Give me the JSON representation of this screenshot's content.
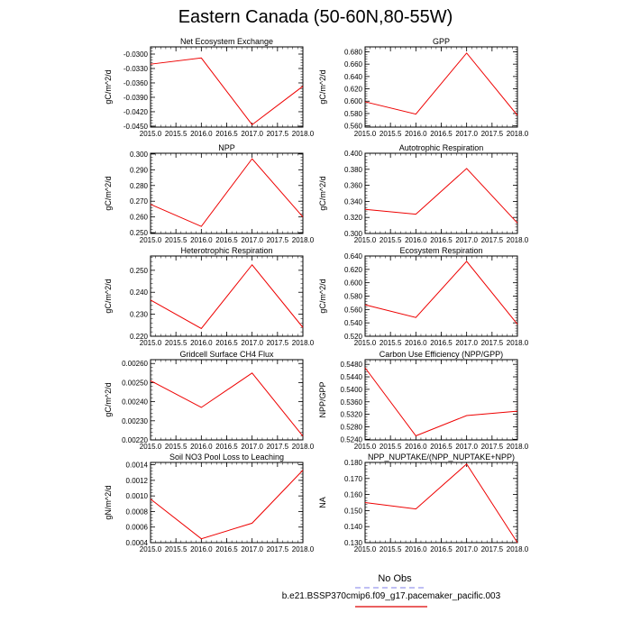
{
  "title": "Eastern Canada (50-60N,80-55W)",
  "chart_data": [
    {
      "type": "line",
      "title": "Net Ecosystem Exchange",
      "ylabel": "gC/m^2/d",
      "x": [
        2015,
        2016,
        2017,
        2018
      ],
      "values": [
        -0.0321,
        -0.0308,
        -0.0447,
        -0.0367
      ],
      "ylim": [
        -0.0452,
        -0.0285
      ],
      "yticks": [
        -0.045,
        -0.042,
        -0.039,
        -0.036,
        -0.033,
        -0.03
      ],
      "yfmt": 4,
      "xlim": [
        2015,
        2018
      ],
      "xticks": [
        2015,
        2015.5,
        2016,
        2016.5,
        2017,
        2017.5,
        2018
      ]
    },
    {
      "type": "line",
      "title": "GPP",
      "ylabel": "gC/m^2/d",
      "x": [
        2015,
        2016,
        2017,
        2018
      ],
      "values": [
        0.599,
        0.579,
        0.678,
        0.577
      ],
      "ylim": [
        0.558,
        0.688
      ],
      "yticks": [
        0.56,
        0.58,
        0.6,
        0.62,
        0.64,
        0.66,
        0.68
      ],
      "yfmt": 3,
      "xlim": [
        2015,
        2018
      ],
      "xticks": [
        2015,
        2015.5,
        2016,
        2016.5,
        2017,
        2017.5,
        2018
      ]
    },
    {
      "type": "line",
      "title": "NPP",
      "ylabel": "gC/m^2/d",
      "x": [
        2015,
        2016,
        2017,
        2018
      ],
      "values": [
        0.268,
        0.254,
        0.297,
        0.26
      ],
      "ylim": [
        0.2495,
        0.3005
      ],
      "yticks": [
        0.25,
        0.26,
        0.27,
        0.28,
        0.29,
        0.3
      ],
      "yfmt": 3,
      "xlim": [
        2015,
        2018
      ],
      "xticks": [
        2015,
        2015.5,
        2016,
        2016.5,
        2017,
        2017.5,
        2018
      ]
    },
    {
      "type": "line",
      "title": "Autotrophic Respiration",
      "ylabel": "gC/m^2/d",
      "x": [
        2015,
        2016,
        2017,
        2018
      ],
      "values": [
        0.33,
        0.324,
        0.381,
        0.313
      ],
      "ylim": [
        0.3,
        0.4
      ],
      "yticks": [
        0.3,
        0.32,
        0.34,
        0.36,
        0.38,
        0.4
      ],
      "yfmt": 3,
      "xlim": [
        2015,
        2018
      ],
      "xticks": [
        2015,
        2015.5,
        2016,
        2016.5,
        2017,
        2017.5,
        2018
      ]
    },
    {
      "type": "line",
      "title": "Heterotrophic Respiration",
      "ylabel": "gC/m^2/d",
      "x": [
        2015,
        2016,
        2017,
        2018
      ],
      "values": [
        0.2365,
        0.2235,
        0.2525,
        0.224
      ],
      "ylim": [
        0.22,
        0.2565
      ],
      "yticks": [
        0.22,
        0.23,
        0.24,
        0.25
      ],
      "yfmt": 3,
      "xlim": [
        2015,
        2018
      ],
      "xticks": [
        2015,
        2015.5,
        2016,
        2016.5,
        2017,
        2017.5,
        2018
      ]
    },
    {
      "type": "line",
      "title": "Ecosystem Respiration",
      "ylabel": "gC/m^2/d",
      "x": [
        2015,
        2016,
        2017,
        2018
      ],
      "values": [
        0.567,
        0.548,
        0.632,
        0.538
      ],
      "ylim": [
        0.52,
        0.64
      ],
      "yticks": [
        0.52,
        0.54,
        0.56,
        0.58,
        0.6,
        0.62,
        0.64
      ],
      "yfmt": 3,
      "xlim": [
        2015,
        2018
      ],
      "xticks": [
        2015,
        2015.5,
        2016,
        2016.5,
        2017,
        2017.5,
        2018
      ]
    },
    {
      "type": "line",
      "title": "Gridcell Surface CH4 Flux",
      "ylabel": "gC/m^2/d",
      "x": [
        2015,
        2016,
        2017,
        2018
      ],
      "values": [
        0.00251,
        0.00237,
        0.00255,
        0.00222
      ],
      "ylim": [
        0.0022,
        0.00262
      ],
      "yticks": [
        0.0022,
        0.0023,
        0.0024,
        0.0025,
        0.0026
      ],
      "yfmt": 5,
      "xlim": [
        2015,
        2018
      ],
      "xticks": [
        2015,
        2015.5,
        2016,
        2016.5,
        2017,
        2017.5,
        2018
      ]
    },
    {
      "type": "line",
      "title": "Carbon Use Efficiency (NPP/GPP)",
      "ylabel": "NPP/GPP",
      "x": [
        2015,
        2016,
        2017,
        2018
      ],
      "values": [
        0.5469,
        0.5251,
        0.5316,
        0.533
      ],
      "ylim": [
        0.5238,
        0.5495
      ],
      "yticks": [
        0.524,
        0.528,
        0.532,
        0.536,
        0.54,
        0.544,
        0.548
      ],
      "yfmt": 4,
      "xlim": [
        2015,
        2018
      ],
      "xticks": [
        2015,
        2015.5,
        2016,
        2016.5,
        2017,
        2017.5,
        2018
      ]
    },
    {
      "type": "line",
      "title": "Soil NO3 Pool Loss to Leaching",
      "ylabel": "gN/m^2/d",
      "x": [
        2015,
        2016,
        2017,
        2018
      ],
      "values": [
        0.00096,
        0.00045,
        0.00065,
        0.00133
      ],
      "ylim": [
        0.0004,
        0.00143
      ],
      "yticks": [
        0.0004,
        0.0006,
        0.0008,
        0.001,
        0.0012,
        0.0014
      ],
      "yfmt": 4,
      "xlim": [
        2015,
        2018
      ],
      "xticks": [
        2015,
        2015.5,
        2016,
        2016.5,
        2017,
        2017.5,
        2018
      ]
    },
    {
      "type": "line",
      "title": "NPP_NUPTAKE/(NPP_NUPTAKE+NPP)",
      "ylabel": "NA",
      "x": [
        2015,
        2016,
        2017,
        2018
      ],
      "values": [
        0.155,
        0.151,
        0.179,
        0.13
      ],
      "ylim": [
        0.13,
        0.18
      ],
      "yticks": [
        0.13,
        0.14,
        0.15,
        0.16,
        0.17,
        0.18
      ],
      "yfmt": 3,
      "xlim": [
        2015,
        2018
      ],
      "xticks": [
        2015,
        2015.5,
        2016,
        2016.5,
        2017,
        2017.5,
        2018
      ]
    }
  ],
  "legend": {
    "obs_label": "No Obs",
    "obs_color": "#9999ee",
    "case_label": "b.e21.BSSP370cmip6.f09_g17.pacemaker_pacific.003",
    "case_color": "#dd0000"
  },
  "line_color": "#ee0000"
}
